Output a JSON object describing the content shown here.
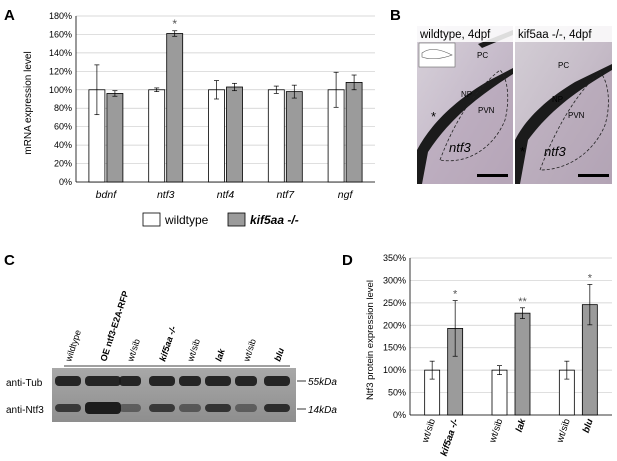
{
  "panels": {
    "a": "A",
    "b": "B",
    "c": "C",
    "d": "D"
  },
  "colors": {
    "wildtype_bar": "#ffffff",
    "mutant_bar": "#9b9b9b",
    "grid": "#cccccc",
    "blot_background": "#9a9a9a",
    "band_dark": "#1a1a1a",
    "photo_tissue": "#b8a8b8"
  },
  "chart_data": [
    {
      "type": "bar",
      "panel": "A",
      "ylabel": "mRNA expression level",
      "ylim": [
        0,
        180
      ],
      "yticks": [
        "0%",
        "20%",
        "40%",
        "60%",
        "80%",
        "100%",
        "120%",
        "140%",
        "160%",
        "180%"
      ],
      "ytick_values": [
        0,
        20,
        40,
        60,
        80,
        100,
        120,
        140,
        160,
        180
      ],
      "categories": [
        "bdnf",
        "ntf3",
        "ntf4",
        "ntf7",
        "ngf"
      ],
      "series": [
        {
          "name": "wildtype",
          "values": [
            100,
            100,
            100,
            100,
            100
          ],
          "errors": [
            27,
            2,
            10,
            4,
            19
          ]
        },
        {
          "name": "kif5aa -/-",
          "values": [
            96,
            161,
            103,
            98,
            108
          ],
          "errors": [
            3,
            3,
            4,
            7,
            8
          ]
        }
      ],
      "annotations": [
        {
          "text": "*",
          "category": "ntf3",
          "series": 1
        }
      ],
      "grid": true,
      "legend": "bottom"
    },
    {
      "type": "bar",
      "panel": "D",
      "ylabel": "Ntf3 protein expression level",
      "ylim": [
        0,
        350
      ],
      "yticks": [
        "0%",
        "50%",
        "100%",
        "150%",
        "200%",
        "250%",
        "300%",
        "350%"
      ],
      "ytick_values": [
        0,
        50,
        100,
        150,
        200,
        250,
        300,
        350
      ],
      "categories": [
        "wt/sib",
        "kif5aa -/-",
        "wt/sib",
        "lak",
        "wt/sib",
        "blu"
      ],
      "bold_categories": [
        false,
        true,
        false,
        true,
        false,
        true
      ],
      "values": [
        100,
        193,
        100,
        227,
        100,
        246
      ],
      "errors": [
        20,
        62,
        10,
        12,
        20,
        45
      ],
      "bar_colors": [
        "#ffffff",
        "#9b9b9b",
        "#ffffff",
        "#9b9b9b",
        "#ffffff",
        "#9b9b9b"
      ],
      "annotations": [
        {
          "text": "*",
          "category_index": 1
        },
        {
          "text": "**",
          "category_index": 3
        },
        {
          "text": "*",
          "category_index": 5
        }
      ],
      "grid": true,
      "legend": "none"
    }
  ],
  "photos": {
    "left_title": "wildtype, 4dpf",
    "right_title": "kif5aa -/-, 4dpf",
    "labels": {
      "pc": "PC",
      "np": "NP",
      "pvn": "PVN",
      "gene": "ntf3",
      "star": "*"
    }
  },
  "blot": {
    "lanes": [
      "wildtype",
      "OE ntf3-E2A-RFP",
      "wt/sib",
      "kif5aa -/-",
      "wt/sib",
      "lak",
      "wt/sib",
      "blu"
    ],
    "bold_lanes": [
      false,
      true,
      false,
      true,
      false,
      true,
      false,
      true
    ],
    "rows": [
      {
        "label": "anti-Tub",
        "size": "55kDa"
      },
      {
        "label": "anti-Ntf3",
        "size": "14kDa"
      }
    ]
  }
}
